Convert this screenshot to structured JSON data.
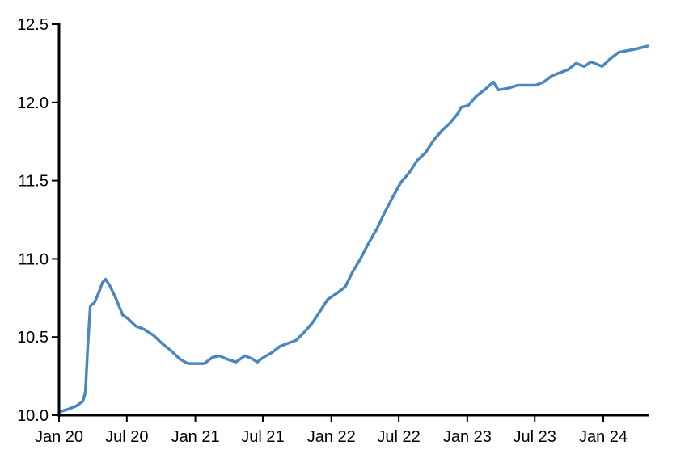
{
  "chart_data": {
    "type": "line",
    "title": "",
    "xlabel": "",
    "ylabel": "",
    "ylim": [
      10.0,
      12.5
    ],
    "xlim": [
      "2020-01-01",
      "2024-05-01"
    ],
    "yticks": [
      "10.0",
      "10.5",
      "11.0",
      "11.5",
      "12.0",
      "12.5"
    ],
    "xticks": [
      {
        "label": "Jan 20",
        "date": "2020-01-01"
      },
      {
        "label": "Jul 20",
        "date": "2020-07-01"
      },
      {
        "label": "Jan 21",
        "date": "2021-01-01"
      },
      {
        "label": "Jul 21",
        "date": "2021-07-01"
      },
      {
        "label": "Jan 22",
        "date": "2022-01-01"
      },
      {
        "label": "Jul 22",
        "date": "2022-07-01"
      },
      {
        "label": "Jan 23",
        "date": "2023-01-01"
      },
      {
        "label": "Jul 23",
        "date": "2023-07-01"
      },
      {
        "label": "Jan 24",
        "date": "2024-01-01"
      }
    ],
    "grid": false,
    "legend": "none",
    "series": [
      {
        "color": "#4a86c0",
        "points": [
          [
            "2020-01-01",
            10.02
          ],
          [
            "2020-01-27",
            10.04
          ],
          [
            "2020-02-17",
            10.06
          ],
          [
            "2020-03-05",
            10.09
          ],
          [
            "2020-03-12",
            10.15
          ],
          [
            "2020-03-18",
            10.44
          ],
          [
            "2020-03-25",
            10.7
          ],
          [
            "2020-04-05",
            10.72
          ],
          [
            "2020-04-16",
            10.78
          ],
          [
            "2020-04-27",
            10.85
          ],
          [
            "2020-05-05",
            10.87
          ],
          [
            "2020-05-18",
            10.82
          ],
          [
            "2020-06-03",
            10.74
          ],
          [
            "2020-06-20",
            10.64
          ],
          [
            "2020-07-03",
            10.62
          ],
          [
            "2020-07-25",
            10.57
          ],
          [
            "2020-08-16",
            10.55
          ],
          [
            "2020-09-11",
            10.51
          ],
          [
            "2020-10-03",
            10.46
          ],
          [
            "2020-10-29",
            10.41
          ],
          [
            "2020-11-20",
            10.36
          ],
          [
            "2020-12-12",
            10.33
          ],
          [
            "2021-01-03",
            10.33
          ],
          [
            "2021-01-25",
            10.33
          ],
          [
            "2021-02-16",
            10.37
          ],
          [
            "2021-03-07",
            10.38
          ],
          [
            "2021-03-25",
            10.36
          ],
          [
            "2021-04-20",
            10.34
          ],
          [
            "2021-05-14",
            10.38
          ],
          [
            "2021-06-03",
            10.36
          ],
          [
            "2021-06-16",
            10.34
          ],
          [
            "2021-07-03",
            10.37
          ],
          [
            "2021-07-25",
            10.4
          ],
          [
            "2021-08-16",
            10.44
          ],
          [
            "2021-09-07",
            10.46
          ],
          [
            "2021-09-29",
            10.48
          ],
          [
            "2021-10-20",
            10.53
          ],
          [
            "2021-11-11",
            10.59
          ],
          [
            "2021-12-03",
            10.67
          ],
          [
            "2021-12-22",
            10.74
          ],
          [
            "2022-01-16",
            10.78
          ],
          [
            "2022-02-07",
            10.82
          ],
          [
            "2022-02-28",
            10.92
          ],
          [
            "2022-03-20",
            11.0
          ],
          [
            "2022-04-11",
            11.1
          ],
          [
            "2022-05-03",
            11.19
          ],
          [
            "2022-05-25",
            11.3
          ],
          [
            "2022-06-16",
            11.4
          ],
          [
            "2022-07-07",
            11.49
          ],
          [
            "2022-07-29",
            11.55
          ],
          [
            "2022-08-20",
            11.63
          ],
          [
            "2022-09-11",
            11.68
          ],
          [
            "2022-10-03",
            11.76
          ],
          [
            "2022-10-25",
            11.82
          ],
          [
            "2022-11-16",
            11.87
          ],
          [
            "2022-12-07",
            11.93
          ],
          [
            "2022-12-16",
            11.97
          ],
          [
            "2023-01-03",
            11.98
          ],
          [
            "2023-01-25",
            12.04
          ],
          [
            "2023-02-16",
            12.08
          ],
          [
            "2023-03-12",
            12.13
          ],
          [
            "2023-03-25",
            12.08
          ],
          [
            "2023-04-20",
            12.09
          ],
          [
            "2023-05-16",
            12.11
          ],
          [
            "2023-06-12",
            12.11
          ],
          [
            "2023-07-03",
            12.11
          ],
          [
            "2023-07-25",
            12.13
          ],
          [
            "2023-08-16",
            12.17
          ],
          [
            "2023-09-07",
            12.19
          ],
          [
            "2023-09-29",
            12.21
          ],
          [
            "2023-10-20",
            12.25
          ],
          [
            "2023-11-11",
            12.23
          ],
          [
            "2023-11-29",
            12.26
          ],
          [
            "2023-12-29",
            12.23
          ],
          [
            "2024-01-20",
            12.28
          ],
          [
            "2024-02-11",
            12.32
          ],
          [
            "2024-03-03",
            12.33
          ],
          [
            "2024-03-25",
            12.34
          ],
          [
            "2024-04-29",
            12.36
          ]
        ]
      }
    ]
  }
}
